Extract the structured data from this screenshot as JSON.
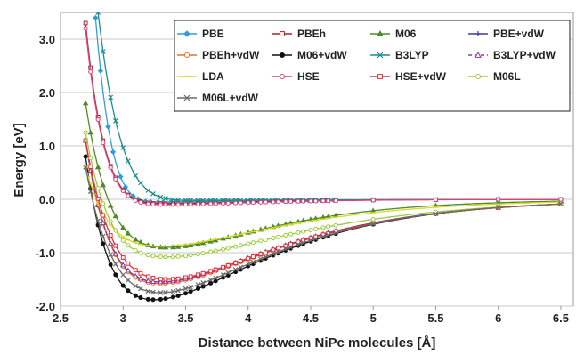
{
  "chart_data": {
    "type": "line",
    "xlabel": "Distance between NiPc molecules [Å]",
    "ylabel": "Energy [eV]",
    "xlim": [
      2.5,
      6.6
    ],
    "ylim": [
      -2.0,
      3.5
    ],
    "xticks": [
      2.5,
      3,
      3.5,
      4,
      4.5,
      5,
      5.5,
      6,
      6.5
    ],
    "yticks": [
      3.0,
      2.0,
      1.0,
      0.0,
      -1.0,
      -2.0
    ],
    "xtick_labels": [
      "2.5",
      "3",
      "3.5",
      "4",
      "4.5",
      "5",
      "5.5",
      "6",
      "6.5"
    ],
    "ytick_labels": [
      "3.0",
      "2.0",
      "1.0",
      "0.0",
      "-1.0",
      "-2.0"
    ],
    "grid": "horizontal",
    "legend_placement": "top-right",
    "series": [
      {
        "name": "PBE",
        "color": "#2e9fd9",
        "marker": "diamond",
        "filled": true,
        "re": 3.3,
        "de": 0.05,
        "alpha": 1.4,
        "e0": 3.4,
        "x0": 2.78
      },
      {
        "name": "PBEh",
        "color": "#9b2a2a",
        "marker": "square",
        "filled": false,
        "re": 3.35,
        "de": 0.08,
        "alpha": 1.45,
        "e0": 3.3,
        "x0": 2.7
      },
      {
        "name": "M06",
        "color": "#4e8a2a",
        "marker": "triangle",
        "filled": true,
        "re": 3.35,
        "de": 0.9,
        "alpha": 1.25,
        "e0": 1.8,
        "x0": 2.7
      },
      {
        "name": "PBE+vdW",
        "color": "#3a3fa0",
        "marker": "plus",
        "filled": false,
        "re": 3.3,
        "de": 1.55,
        "alpha": 1.1,
        "e0": 1.1,
        "x0": 2.7
      },
      {
        "name": "PBEh+vdW",
        "color": "#e8732a",
        "marker": "circle",
        "filled": false,
        "re": 3.3,
        "de": 1.58,
        "alpha": 1.1,
        "e0": 1.1,
        "x0": 2.7
      },
      {
        "name": "M06+vdW",
        "color": "#111111",
        "marker": "circle",
        "filled": true,
        "re": 3.25,
        "de": 1.88,
        "alpha": 1.15,
        "e0": 0.8,
        "x0": 2.7
      },
      {
        "name": "B3LYP",
        "color": "#1f8c8c",
        "marker": "x",
        "filled": false,
        "re": 3.6,
        "de": 0.02,
        "alpha": 1.2,
        "e0": 3.5,
        "x0": 2.8
      },
      {
        "name": "B3LYP+vdW",
        "color": "#8e3b8e",
        "marker": "triangle",
        "filled": false,
        "dashed": true,
        "re": 3.3,
        "de": 1.55,
        "alpha": 1.1,
        "e0": 1.1,
        "x0": 2.7
      },
      {
        "name": "LDA",
        "color": "#d9d92a",
        "marker": "dash",
        "filled": false,
        "re": 3.3,
        "de": 0.88,
        "alpha": 1.1,
        "e0": 0.6,
        "x0": 2.7
      },
      {
        "name": "HSE",
        "color": "#e0407a",
        "marker": "circle",
        "filled": false,
        "re": 3.35,
        "de": 0.1,
        "alpha": 1.45,
        "e0": 3.2,
        "x0": 2.7
      },
      {
        "name": "HSE+vdW",
        "color": "#e0303a",
        "marker": "square",
        "filled": false,
        "re": 3.35,
        "de": 1.5,
        "alpha": 1.1,
        "e0": 1.1,
        "x0": 2.7
      },
      {
        "name": "M06L",
        "color": "#9ccc3a",
        "marker": "circle",
        "filled": false,
        "re": 3.35,
        "de": 1.08,
        "alpha": 1.0,
        "e0": 1.25,
        "x0": 2.7
      },
      {
        "name": "M06L+vdW",
        "color": "#6a6a6a",
        "marker": "x",
        "filled": false,
        "re": 3.3,
        "de": 1.75,
        "alpha": 1.15,
        "e0": 0.6,
        "x0": 2.7
      }
    ]
  }
}
